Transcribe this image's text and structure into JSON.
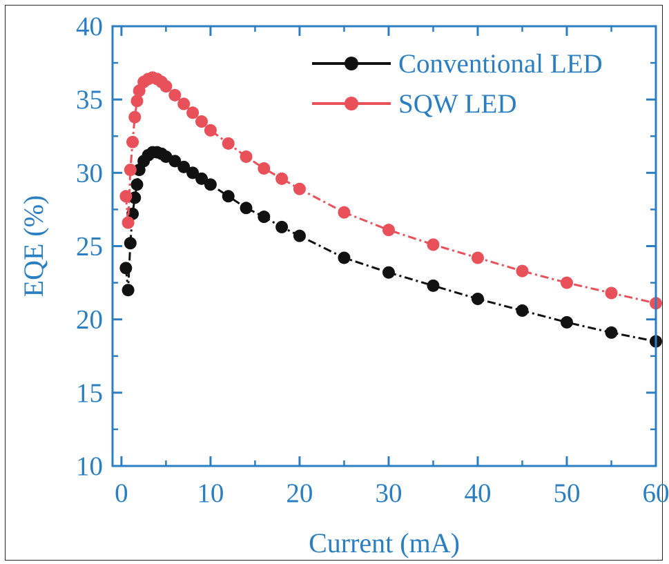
{
  "colors": {
    "axis": "#2b7fc1",
    "conventional": "#111111",
    "sqw": "#e8505a"
  },
  "chart_data": {
    "type": "line",
    "title": "",
    "xlabel": "Current (mA)",
    "ylabel": "EQE (%)",
    "xlim": [
      -1,
      60
    ],
    "ylim": [
      10,
      40
    ],
    "xticks": [
      0,
      10,
      20,
      30,
      40,
      50,
      60
    ],
    "yticks": [
      10,
      15,
      20,
      25,
      30,
      35,
      40
    ],
    "grid": false,
    "legend_position": "top-right",
    "series": [
      {
        "name": "Conventional LED",
        "color": "#111111",
        "x": [
          0.5,
          0.75,
          1,
          1.25,
          1.5,
          1.75,
          2,
          2.5,
          3,
          3.5,
          4,
          4.5,
          5,
          6,
          7,
          8,
          9,
          10,
          12,
          14,
          16,
          18,
          20,
          25,
          30,
          35,
          40,
          45,
          50,
          55,
          60
        ],
        "y": [
          23.5,
          22.0,
          25.2,
          27.2,
          28.3,
          29.2,
          30.2,
          30.8,
          31.2,
          31.4,
          31.4,
          31.3,
          31.1,
          30.8,
          30.4,
          30.0,
          29.6,
          29.2,
          28.4,
          27.6,
          27.0,
          26.3,
          25.7,
          24.2,
          23.2,
          22.3,
          21.4,
          20.6,
          19.8,
          19.1,
          18.5
        ]
      },
      {
        "name": "SQW LED",
        "color": "#e8505a",
        "x": [
          0.5,
          0.75,
          1,
          1.25,
          1.5,
          1.75,
          2,
          2.5,
          3,
          3.5,
          4,
          4.5,
          5,
          6,
          7,
          8,
          9,
          10,
          12,
          14,
          16,
          18,
          20,
          25,
          30,
          35,
          40,
          45,
          50,
          55,
          60
        ],
        "y": [
          28.4,
          26.6,
          30.2,
          32.1,
          33.8,
          34.9,
          35.6,
          36.2,
          36.4,
          36.5,
          36.4,
          36.2,
          35.9,
          35.3,
          34.7,
          34.1,
          33.5,
          32.9,
          32.0,
          31.1,
          30.3,
          29.6,
          28.9,
          27.3,
          26.1,
          25.1,
          24.2,
          23.3,
          22.5,
          21.8,
          21.1
        ]
      }
    ]
  }
}
